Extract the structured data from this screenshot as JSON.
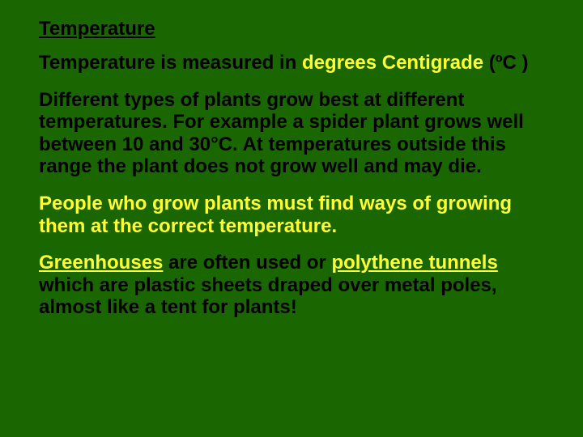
{
  "colors": {
    "background": "#1a6600",
    "text_black": "#000000",
    "text_yellow": "#ffff33"
  },
  "typography": {
    "font_family": "Comic Sans MS",
    "heading_fontsize": 24,
    "body_fontsize": 24,
    "font_weight": "bold",
    "line_height": 1.15
  },
  "heading": "Temperature",
  "para1": {
    "text1": "Temperature is measured in ",
    "degrees": "degrees Centigrade",
    "text2": "  (ºC )"
  },
  "para2": "Different types of plants grow best at different temperatures. For example a spider plant grows well between 10 and 30°C. At temperatures outside this range the plant does not grow well and may die.",
  "para3": "People who grow plants must find ways of growing them at the correct temperature.",
  "para4": {
    "greenhouses": "Greenhouses",
    "text1": " are often used or ",
    "polythene": "polythene tunnels",
    "text2": " which are plastic sheets draped over metal poles, almost like a tent for plants!"
  }
}
